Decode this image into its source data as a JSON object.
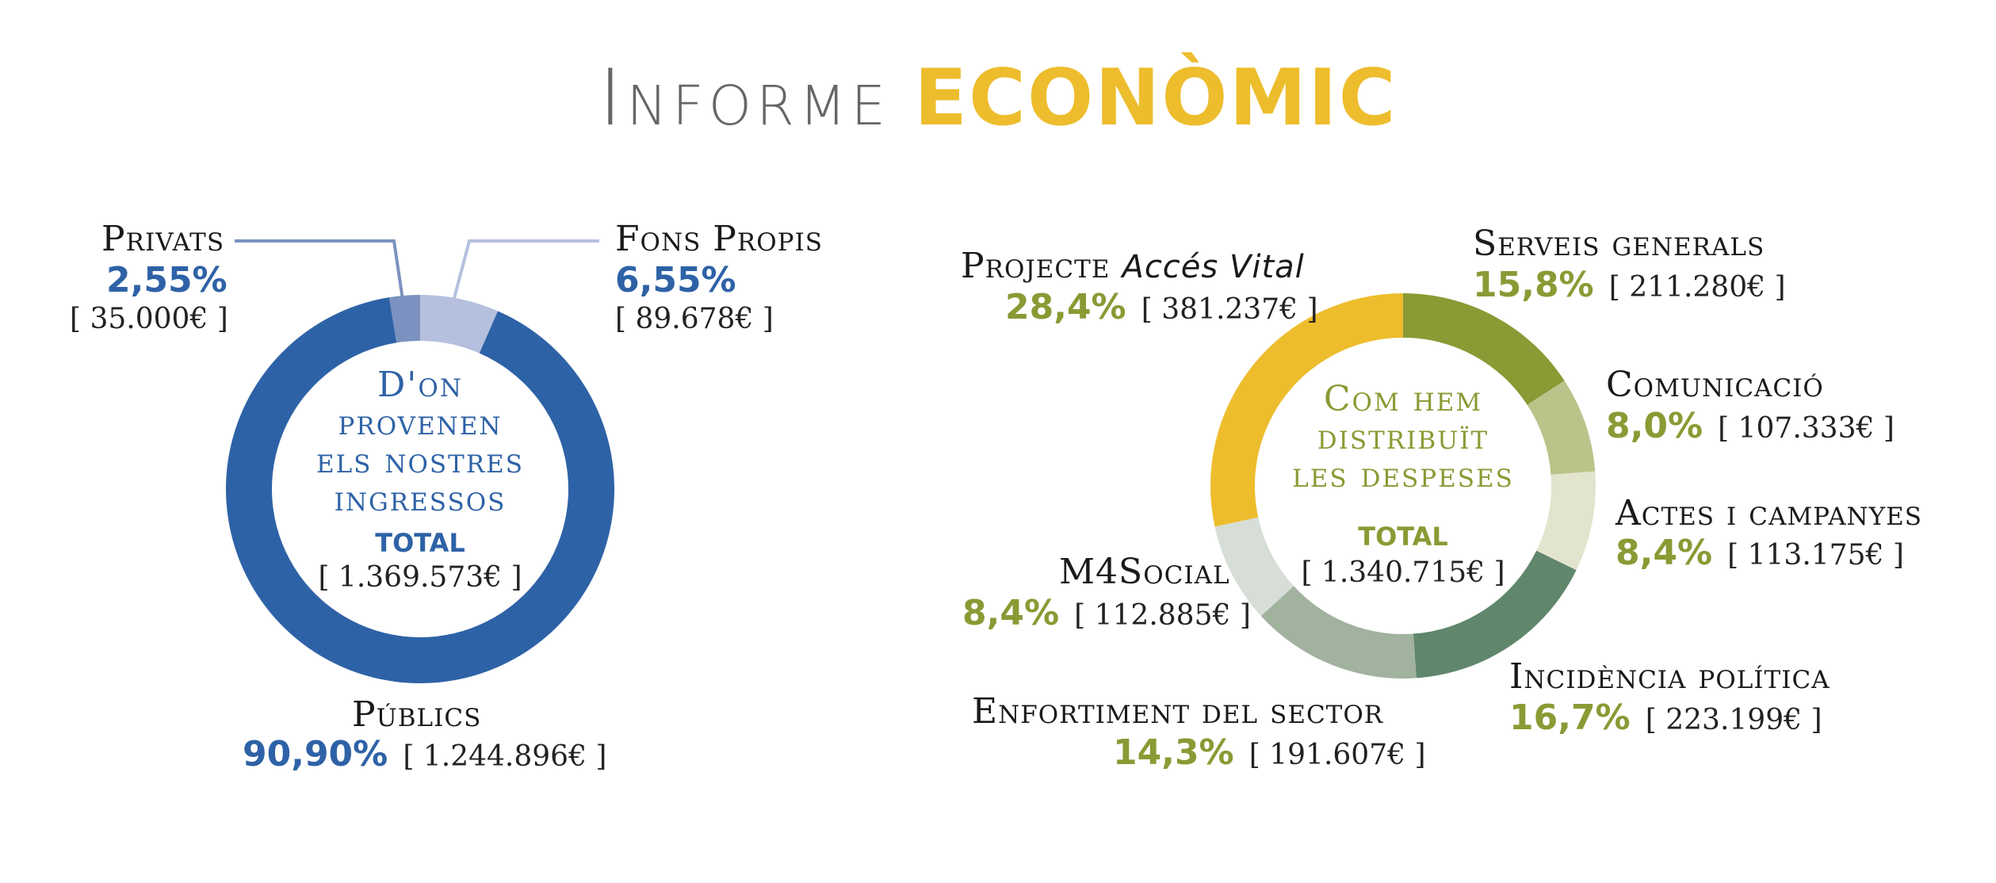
{
  "title": {
    "part1": "Informe",
    "part2": "ECONÒMIC"
  },
  "colors": {
    "blue": "#2e62a6",
    "green": "#8a9a34",
    "gold": "#edbd2d"
  },
  "chart_data": [
    {
      "type": "pie",
      "center": {
        "line1": "D'on",
        "line2": "provenen",
        "line3": "els nostres",
        "line4": "ingressos",
        "total_label": "TOTAL",
        "total_value": "[ 1.369.573€ ]"
      },
      "slices": [
        {
          "label": "Públics",
          "percent": "90,90%",
          "amount": "[ 1.244.896€ ]",
          "value": 90.9,
          "color": "#2e62a6"
        },
        {
          "label": "Privats",
          "percent": "2,55%",
          "amount": "[ 35.000€ ]",
          "value": 2.55,
          "color": "#7b92c0"
        },
        {
          "label": "Fons Propis",
          "percent": "6,55%",
          "amount": "[ 89.678€ ]",
          "value": 6.55,
          "color": "#b4c0de"
        }
      ]
    },
    {
      "type": "pie",
      "center": {
        "line1": "Com hem",
        "line2": "distribuït",
        "line3": "les despeses",
        "total_label": "TOTAL",
        "total_value": "[ 1.340.715€ ]"
      },
      "slices": [
        {
          "label": "Serveis generals",
          "percent": "15,8%",
          "amount": "[ 211.280€ ]",
          "value": 15.8,
          "color": "#8a9a34"
        },
        {
          "label": "Comunicació",
          "percent": "8,0%",
          "amount": "[ 107.333€ ]",
          "value": 8.0,
          "color": "#bcc38a"
        },
        {
          "label": "Actes i campanyes",
          "percent": "8,4%",
          "amount": "[ 113.175€ ]",
          "value": 8.4,
          "color": "#e3e4ce"
        },
        {
          "label": "Incidència política",
          "percent": "16,7%",
          "amount": "[ 223.199€ ]",
          "value": 16.7,
          "color": "#60866c"
        },
        {
          "label": "Enfortiment del sector",
          "percent": "14,3%",
          "amount": "[ 191.607€ ]",
          "value": 14.3,
          "color": "#a1b29e"
        },
        {
          "label": "M4Social",
          "percent": "8,4%",
          "amount": "[ 112.885€ ]",
          "value": 8.4,
          "color": "#d7ddd7"
        },
        {
          "label_prefix": "Projecte",
          "label_italic": "Accés Vital",
          "percent": "28,4%",
          "amount": "[ 381.237€ ]",
          "value": 28.4,
          "color": "#edbd2d"
        }
      ]
    }
  ]
}
